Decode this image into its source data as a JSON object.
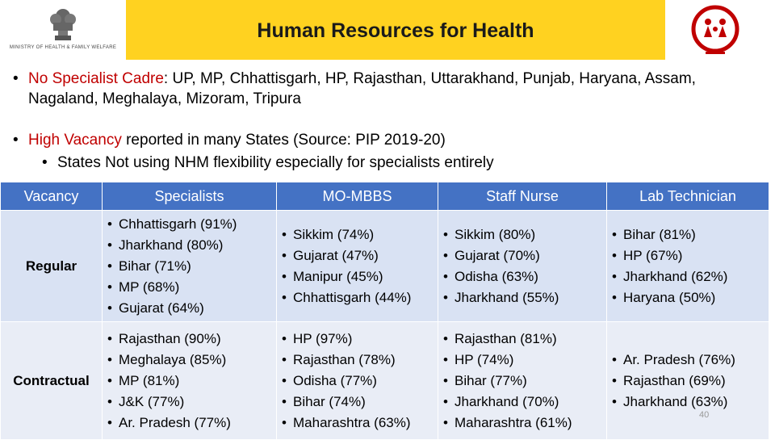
{
  "header": {
    "title": "Human Resources for Health",
    "ministry_logo_text": "MINISTRY OF HEALTH & FAMILY WELFARE"
  },
  "bullets": [
    {
      "highlight": "No Specialist Cadre",
      "rest": ": UP, MP, Chhattisgarh, HP, Rajasthan, Uttarakhand, Punjab, Haryana, Assam, Nagaland, Meghalaya, Mizoram, Tripura"
    },
    {
      "highlight": "High Vacancy",
      "rest": " reported in many States (Source: PIP 2019-20)",
      "sub": "States Not using NHM flexibility especially for specialists entirely"
    }
  ],
  "table": {
    "headers": [
      "Vacancy",
      "Specialists",
      "MO-MBBS",
      "Staff Nurse",
      "Lab Technician"
    ],
    "rows": [
      {
        "label": "Regular",
        "cells": [
          [
            "Chhattisgarh (91%)",
            "Jharkhand (80%)",
            "Bihar (71%)",
            "MP (68%)",
            "Gujarat (64%)"
          ],
          [
            "Sikkim (74%)",
            "Gujarat (47%)",
            "Manipur (45%)",
            "Chhattisgarh (44%)"
          ],
          [
            "Sikkim (80%)",
            "Gujarat (70%)",
            "Odisha (63%)",
            "Jharkhand (55%)"
          ],
          [
            "Bihar (81%)",
            "HP (67%)",
            "Jharkhand (62%)",
            "Haryana (50%)"
          ]
        ]
      },
      {
        "label": "Contractual",
        "cells": [
          [
            "Rajasthan (90%)",
            "Meghalaya (85%)",
            "MP (81%)",
            "J&K (77%)",
            "Ar. Pradesh (77%)"
          ],
          [
            "HP (97%)",
            "Rajasthan (78%)",
            "Odisha (77%)",
            "Bihar (74%)",
            "Maharashtra (63%)"
          ],
          [
            "Rajasthan (81%)",
            "HP (74%)",
            "Bihar (77%)",
            "Jharkhand (70%)",
            "Maharashtra (61%)"
          ],
          [
            "Ar. Pradesh (76%)",
            "Rajasthan (69%)",
            "Jharkhand (63%)"
          ]
        ]
      }
    ]
  },
  "page_number": "40",
  "colors": {
    "title_bar": "#ffd220",
    "header_blue": "#4472c4",
    "highlight_red": "#c00000",
    "row_fill": "#d9e2f3"
  }
}
